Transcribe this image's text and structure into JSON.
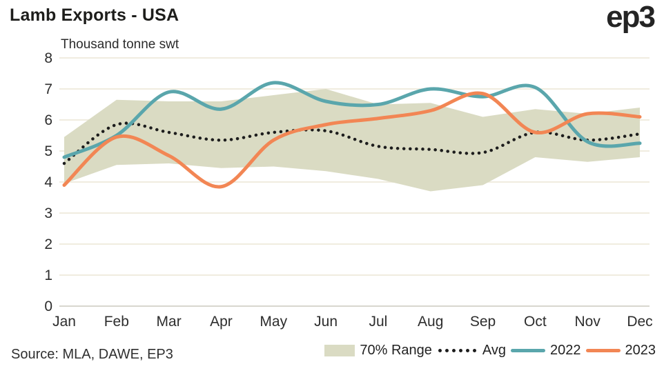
{
  "header": {
    "title": "Lamb Exports - USA",
    "logo": "ep3"
  },
  "footer": {
    "source": "Source: MLA, DAWE, EP3"
  },
  "colors": {
    "band": "#dadbc3",
    "avg": "#1d1d1d",
    "y2022": "#5aa6ac",
    "y2023": "#f28654",
    "grid": "#f0ecdf",
    "axis": "#d8d6ce",
    "tick_text": "#2d2d2d"
  },
  "chart_data": {
    "type": "line",
    "title": "Lamb Exports - USA",
    "ylabel": "Thousand tonne swt",
    "xlabel": "",
    "categories": [
      "Jan",
      "Feb",
      "Mar",
      "Apr",
      "May",
      "Jun",
      "Jul",
      "Aug",
      "Sep",
      "Oct",
      "Nov",
      "Dec"
    ],
    "yticks": [
      0,
      1,
      2,
      3,
      4,
      5,
      6,
      7,
      8
    ],
    "ylim": [
      0,
      8
    ],
    "grid": "horizontal",
    "legend_position": "bottom",
    "band": {
      "name": "70% Range",
      "color": "#dadbc3",
      "upper": [
        5.45,
        6.65,
        6.6,
        6.6,
        6.8,
        7.0,
        6.5,
        6.55,
        6.1,
        6.35,
        6.2,
        6.4
      ],
      "lower": [
        3.95,
        4.55,
        4.6,
        4.45,
        4.5,
        4.35,
        4.1,
        3.7,
        3.9,
        4.8,
        4.65,
        4.8
      ]
    },
    "series": [
      {
        "name": "Avg",
        "style": "dotted",
        "color": "#1d1d1d",
        "values": [
          4.6,
          5.85,
          5.6,
          5.35,
          5.6,
          5.65,
          5.15,
          5.05,
          4.95,
          5.6,
          5.35,
          5.55
        ]
      },
      {
        "name": "2022",
        "style": "solid",
        "color": "#5aa6ac",
        "values": [
          4.8,
          5.5,
          6.9,
          6.35,
          7.2,
          6.6,
          6.5,
          7.0,
          6.75,
          7.05,
          5.3,
          5.25
        ]
      },
      {
        "name": "2023",
        "style": "solid",
        "color": "#f28654",
        "values": [
          3.9,
          5.45,
          4.85,
          3.85,
          5.35,
          5.85,
          6.05,
          6.3,
          6.85,
          5.6,
          6.2,
          6.1
        ]
      }
    ]
  }
}
